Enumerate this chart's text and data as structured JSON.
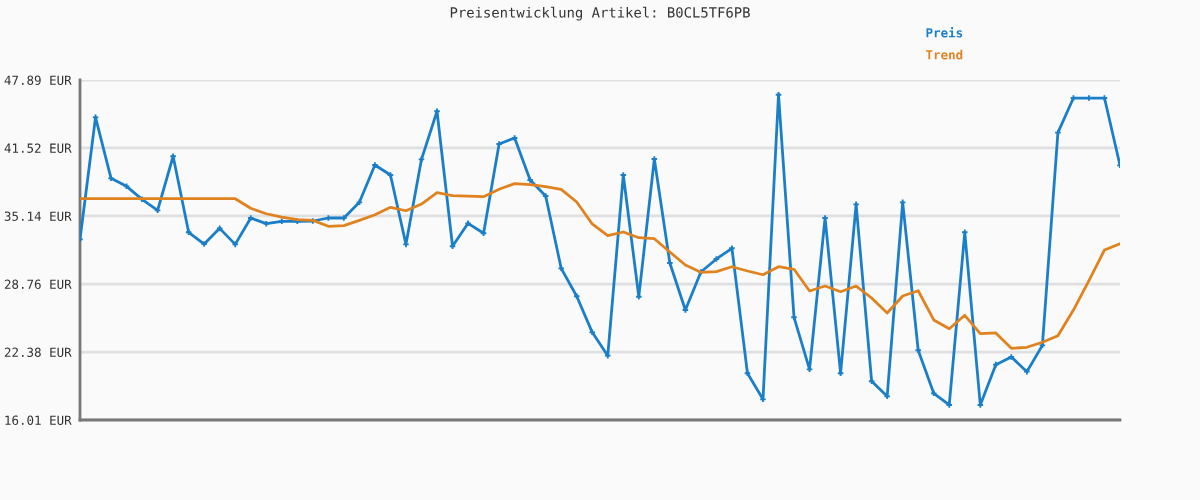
{
  "chart_data": {
    "type": "line",
    "title": "Preisentwicklung Artikel: B0CL5TF6PB",
    "categories": [
      null,
      null,
      null,
      null,
      null,
      null,
      null,
      null,
      null,
      null,
      null,
      null,
      null,
      null,
      null,
      null,
      null,
      null,
      null,
      null,
      null,
      null,
      null,
      null,
      null,
      null,
      null,
      null,
      null,
      null,
      null,
      null,
      null,
      null,
      null,
      null,
      null,
      null,
      null,
      null,
      null,
      null,
      null,
      null,
      null,
      null,
      null,
      null,
      null,
      null,
      null,
      null,
      null,
      null,
      null,
      null,
      null,
      null,
      null,
      null,
      null,
      null,
      null,
      null,
      null,
      null,
      null,
      null
    ],
    "series": [
      {
        "name": "Preis",
        "color": "#1a7fc8",
        "marker": "cross",
        "values": [
          32.95,
          44.39,
          38.67,
          37.92,
          36.7,
          35.67,
          40.74,
          33.61,
          32.51,
          33.98,
          32.48,
          34.95,
          34.42,
          34.64,
          34.64,
          34.67,
          34.95,
          34.95,
          36.42,
          39.92,
          38.98,
          32.48,
          40.45,
          44.96,
          32.3,
          34.45,
          33.52,
          41.89,
          42.45,
          38.51,
          37.01,
          30.23,
          27.61,
          24.23,
          22.04,
          38.98,
          27.57,
          40.48,
          30.73,
          26.32,
          29.89,
          31.11,
          32.11,
          20.39,
          17.95,
          46.51,
          25.64,
          20.76,
          34.95,
          20.39,
          36.23,
          19.64,
          18.23,
          36.42,
          22.55,
          18.51,
          17.42,
          33.61,
          17.42,
          21.2,
          21.92,
          20.54,
          23.01,
          42.95,
          46.2,
          46.2,
          46.2,
          39.89
        ]
      },
      {
        "name": "Trend",
        "color": "#e0821e",
        "marker": "none",
        "values": [
          36.76,
          36.76,
          36.76,
          36.76,
          36.76,
          36.76,
          36.76,
          36.76,
          36.76,
          36.76,
          36.76,
          35.86,
          35.35,
          35.04,
          34.79,
          34.73,
          34.17,
          34.23,
          34.73,
          35.26,
          35.95,
          35.63,
          36.26,
          37.32,
          37.04,
          37.01,
          36.95,
          37.64,
          38.17,
          38.07,
          37.89,
          37.64,
          36.45,
          34.39,
          33.29,
          33.64,
          33.1,
          33.01,
          31.76,
          30.54,
          29.86,
          29.92,
          30.38,
          29.98,
          29.63,
          30.38,
          30.14,
          28.11,
          28.57,
          28.04,
          28.57,
          27.45,
          26.04,
          27.64,
          28.13,
          25.39,
          24.57,
          25.83,
          24.1,
          24.17,
          22.73,
          22.83,
          23.3,
          23.91,
          26.32,
          29.07,
          31.95,
          32.54
        ]
      }
    ],
    "ylim": [
      16.01,
      47.89
    ],
    "yticks": [
      {
        "value": 16.01,
        "label": "16.01 EUR"
      },
      {
        "value": 22.38,
        "label": "22.38 EUR"
      },
      {
        "value": 28.76,
        "label": "28.76 EUR"
      },
      {
        "value": 35.14,
        "label": "35.14 EUR"
      },
      {
        "value": 41.52,
        "label": "41.52 EUR"
      },
      {
        "value": 47.89,
        "label": "47.89 EUR"
      }
    ],
    "grid": "y",
    "legend": "top right",
    "line_style": "solid"
  }
}
